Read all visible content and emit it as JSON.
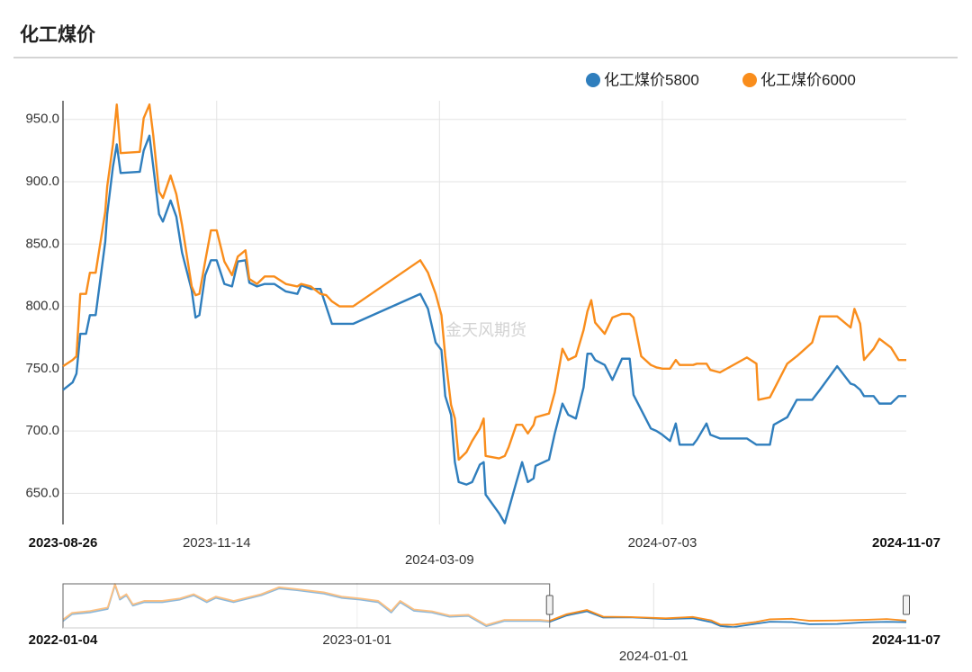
{
  "chart_data": [
    {
      "type": "line",
      "title": "化工煤价",
      "watermark": "金天风期货",
      "legend": "top-right",
      "grid": true,
      "xlim": [
        "2023-08-26",
        "2024-11-07"
      ],
      "xticks": [
        "2023-08-26",
        "2023-11-14",
        "2024-03-09",
        "2024-07-03",
        "2024-11-07"
      ],
      "ylim": [
        625,
        965
      ],
      "yticks": [
        {
          "value": 650,
          "label": "650.0"
        },
        {
          "value": 700,
          "label": "700.0"
        },
        {
          "value": 750,
          "label": "750.0"
        },
        {
          "value": 800,
          "label": "800.0"
        },
        {
          "value": 850,
          "label": "850.0"
        },
        {
          "value": 900,
          "label": "900.0"
        },
        {
          "value": 950,
          "label": "950.0"
        }
      ],
      "x": [
        "2023-08-26",
        "2023-08-31",
        "2023-09-02",
        "2023-09-04",
        "2023-09-07",
        "2023-09-09",
        "2023-09-12",
        "2023-09-17",
        "2023-09-18",
        "2023-09-21",
        "2023-09-23",
        "2023-09-25",
        "2023-10-05",
        "2023-10-07",
        "2023-10-10",
        "2023-10-12",
        "2023-10-15",
        "2023-10-17",
        "2023-10-21",
        "2023-10-24",
        "2023-10-27",
        "2023-11-01",
        "2023-11-03",
        "2023-11-05",
        "2023-11-08",
        "2023-11-11",
        "2023-11-14",
        "2023-11-18",
        "2023-11-22",
        "2023-11-25",
        "2023-11-29",
        "2023-12-01",
        "2023-12-05",
        "2023-12-09",
        "2023-12-14",
        "2023-12-20",
        "2023-12-26",
        "2023-12-28",
        "2024-01-02",
        "2024-01-07",
        "2024-01-10",
        "2024-01-13",
        "2024-01-17",
        "2024-01-24",
        "2024-02-28",
        "2024-03-03",
        "2024-03-07",
        "2024-03-10",
        "2024-03-12",
        "2024-03-15",
        "2024-03-17",
        "2024-03-19",
        "2024-03-23",
        "2024-03-26",
        "2024-03-30",
        "2024-04-01",
        "2024-04-02",
        "2024-04-09",
        "2024-04-12",
        "2024-04-14",
        "2024-04-18",
        "2024-04-21",
        "2024-04-24",
        "2024-04-27",
        "2024-04-28",
        "2024-05-05",
        "2024-05-08",
        "2024-05-12",
        "2024-05-15",
        "2024-05-19",
        "2024-05-23",
        "2024-05-25",
        "2024-05-27",
        "2024-05-29",
        "2024-06-03",
        "2024-06-07",
        "2024-06-12",
        "2024-06-16",
        "2024-06-18",
        "2024-06-22",
        "2024-06-27",
        "2024-06-30",
        "2024-07-03",
        "2024-07-07",
        "2024-07-10",
        "2024-07-12",
        "2024-07-19",
        "2024-07-21",
        "2024-07-26",
        "2024-07-28",
        "2024-08-02",
        "2024-08-16",
        "2024-08-21",
        "2024-08-22",
        "2024-08-28",
        "2024-08-30",
        "2024-09-06",
        "2024-09-11",
        "2024-09-19",
        "2024-09-23",
        "2024-10-02",
        "2024-10-09",
        "2024-10-11",
        "2024-10-14",
        "2024-10-16",
        "2024-10-21",
        "2024-10-24",
        "2024-10-30",
        "2024-11-03",
        "2024-11-07"
      ],
      "series": [
        {
          "name": "化工煤价5800",
          "color": "#2f7ebd",
          "values": [
            733,
            739,
            746,
            778,
            778,
            793,
            793,
            852,
            874,
            912,
            930,
            907,
            908,
            925,
            937,
            912,
            874,
            868,
            885,
            872,
            843,
            813,
            791,
            793,
            825,
            837,
            837,
            818,
            816,
            836,
            837,
            819,
            816,
            818,
            818,
            812,
            810,
            817,
            814,
            814,
            800,
            786,
            786,
            786,
            810,
            798,
            771,
            765,
            728,
            713,
            675,
            659,
            657,
            659,
            673,
            675,
            649,
            634,
            626,
            637,
            659,
            675,
            659,
            662,
            672,
            677,
            698,
            722,
            713,
            710,
            735,
            762,
            762,
            757,
            753,
            741,
            758,
            758,
            729,
            717,
            702,
            700,
            697,
            692,
            706,
            689,
            689,
            693,
            706,
            697,
            694,
            694,
            689,
            689,
            689,
            705,
            711,
            725,
            725,
            733,
            752,
            738,
            737,
            733,
            728,
            728,
            722,
            722,
            728,
            728
          ]
        },
        {
          "name": "化工煤价6000",
          "color": "#f98d1c",
          "values": [
            752,
            757,
            760,
            810,
            810,
            827,
            827,
            876,
            896,
            930,
            962,
            923,
            924,
            951,
            962,
            937,
            892,
            887,
            905,
            890,
            865,
            816,
            809,
            810,
            836,
            861,
            861,
            836,
            825,
            840,
            845,
            822,
            818,
            824,
            824,
            818,
            816,
            818,
            816,
            810,
            809,
            804,
            800,
            800,
            837,
            827,
            810,
            793,
            760,
            721,
            710,
            677,
            683,
            692,
            702,
            710,
            680,
            678,
            680,
            687,
            705,
            705,
            698,
            705,
            711,
            714,
            731,
            766,
            757,
            760,
            781,
            796,
            805,
            787,
            778,
            791,
            794,
            794,
            791,
            760,
            753,
            751,
            750,
            750,
            757,
            753,
            753,
            754,
            754,
            749,
            747,
            759,
            754,
            725,
            727,
            733,
            754,
            760,
            771,
            792,
            792,
            783,
            798,
            786,
            757,
            766,
            774,
            767,
            757,
            757
          ]
        }
      ]
    },
    {
      "type": "line",
      "xlim": [
        "2022-01-04",
        "2024-11-07"
      ],
      "xticks": [
        "2022-01-04",
        "2023-01-01",
        "2024-01-01",
        "2024-11-07"
      ],
      "ylim": [
        620,
        1460
      ],
      "x": [
        "2022-01-04",
        "2022-01-15",
        "2022-02-06",
        "2022-02-28",
        "2022-03-09",
        "2022-03-15",
        "2022-03-23",
        "2022-03-31",
        "2022-04-14",
        "2022-05-06",
        "2022-05-28",
        "2022-06-14",
        "2022-06-30",
        "2022-07-11",
        "2022-08-02",
        "2022-09-05",
        "2022-09-27",
        "2022-10-19",
        "2022-11-21",
        "2022-12-13",
        "2023-01-05",
        "2023-01-27",
        "2023-02-12",
        "2023-02-23",
        "2023-03-12",
        "2023-04-03",
        "2023-04-25",
        "2023-05-18",
        "2023-06-09",
        "2023-07-01",
        "2023-07-23",
        "2023-08-14",
        "2023-08-26",
        "2023-09-16",
        "2023-10-11",
        "2023-10-31",
        "2023-12-03",
        "2024-01-16",
        "2024-02-18",
        "2024-03-12",
        "2024-03-23",
        "2024-04-08",
        "2024-05-06",
        "2024-05-23",
        "2024-06-19",
        "2024-07-11",
        "2024-08-14",
        "2024-09-16",
        "2024-10-14",
        "2024-11-07"
      ],
      "series": [
        {
          "color": "#2f7ebd",
          "values": [
            748,
            876,
            908,
            972,
            1420,
            1148,
            1228,
            1036,
            1100,
            1100,
            1148,
            1228,
            1100,
            1180,
            1100,
            1228,
            1356,
            1324,
            1260,
            1180,
            1148,
            1100,
            908,
            1100,
            940,
            908,
            828,
            844,
            652,
            748,
            748,
            748,
            733,
            852,
            930,
            813,
            818,
            786,
            800,
            728,
            657,
            634,
            698,
            735,
            729,
            689,
            694,
            725,
            733,
            728
          ]
        },
        {
          "color": "#f98d1c",
          "values": [
            775,
            900,
            935,
            1000,
            1440,
            1175,
            1250,
            1060,
            1125,
            1125,
            1170,
            1250,
            1125,
            1205,
            1125,
            1250,
            1380,
            1345,
            1285,
            1205,
            1170,
            1125,
            935,
            1125,
            965,
            930,
            850,
            865,
            675,
            770,
            770,
            770,
            752,
            876,
            955,
            830,
            824,
            800,
            825,
            760,
            683,
            678,
            731,
            781,
            791,
            753,
            759,
            771,
            786,
            757
          ]
        }
      ]
    }
  ]
}
